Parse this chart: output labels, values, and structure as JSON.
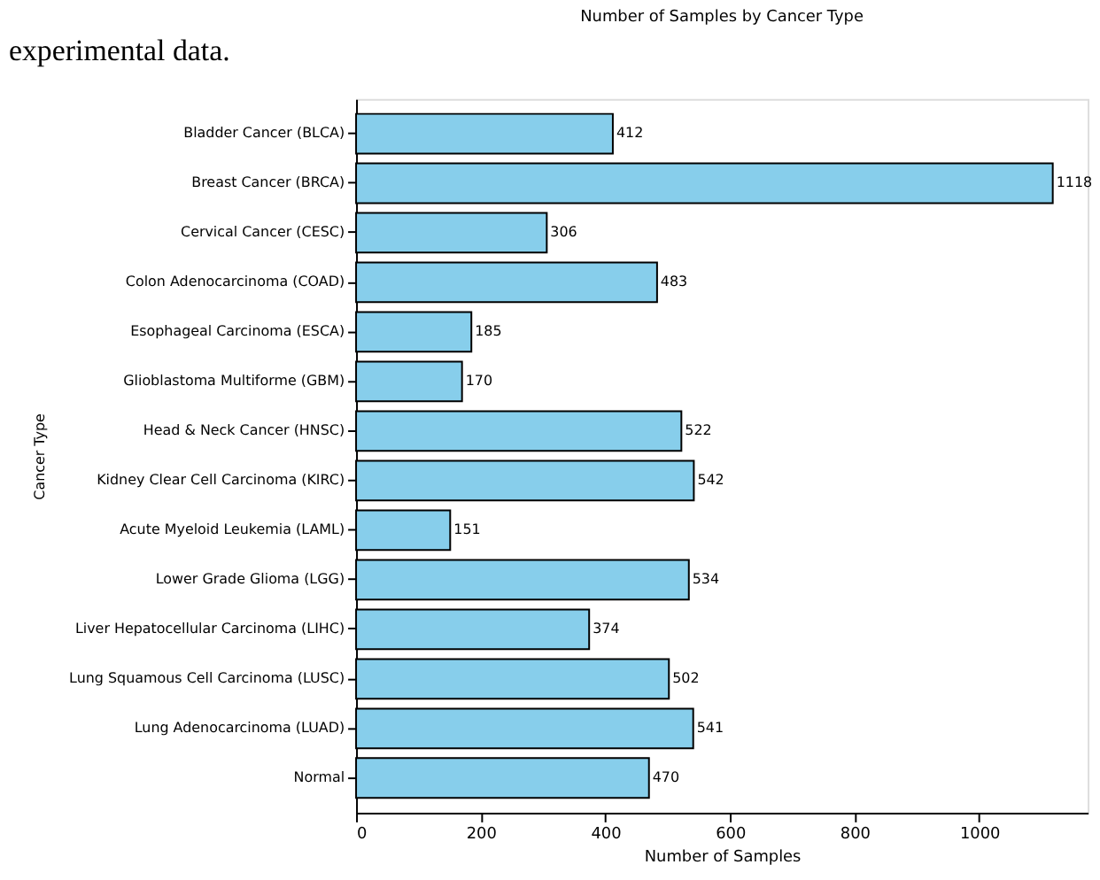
{
  "chart_data": {
    "type": "bar",
    "orientation": "horizontal",
    "title": "Number of Samples by Cancer Type",
    "xlabel": "Number of Samples",
    "ylabel": "Cancer Type",
    "annotations": [
      "experimental data."
    ],
    "categories": [
      "Bladder Cancer (BLCA)",
      "Breast Cancer (BRCA)",
      "Cervical Cancer (CESC)",
      "Colon Adenocarcinoma (COAD)",
      "Esophageal Carcinoma (ESCA)",
      "Glioblastoma Multiforme (GBM)",
      "Head & Neck Cancer (HNSC)",
      "Kidney Clear Cell Carcinoma (KIRC)",
      "Acute Myeloid Leukemia (LAML)",
      "Lower Grade Glioma (LGG)",
      "Liver Hepatocellular Carcinoma (LIHC)",
      "Lung Squamous Cell Carcinoma (LUSC)",
      "Lung Adenocarcinoma (LUAD)",
      "Normal"
    ],
    "values": [
      412,
      1118,
      306,
      483,
      185,
      170,
      522,
      542,
      151,
      534,
      374,
      502,
      541,
      470
    ],
    "color": "#87ceeb",
    "xlim": [
      0,
      1174
    ],
    "xticks": [
      0,
      200,
      400,
      600,
      800,
      1000
    ],
    "data_labels": true,
    "grid": false
  }
}
